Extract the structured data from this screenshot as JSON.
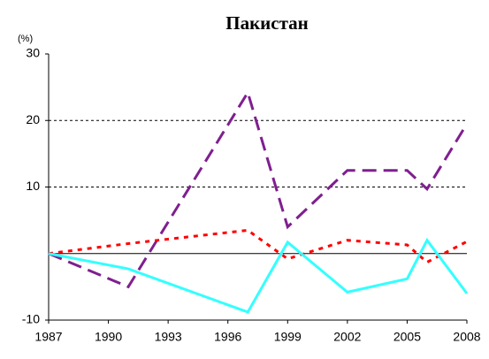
{
  "chart_data": {
    "type": "line",
    "title": "Пакистан",
    "y_label": "(%)",
    "x": [
      1987,
      1991,
      1997,
      1999,
      2002,
      2005,
      2006,
      2008
    ],
    "xlim": [
      1987,
      2008
    ],
    "xticks": [
      1987,
      1990,
      1993,
      1996,
      1999,
      2002,
      2005,
      2008
    ],
    "ylim": [
      -10,
      30
    ],
    "yticks": [
      -10,
      10,
      20,
      30
    ],
    "grid": true,
    "series": [
      {
        "color": "#7f1f8f",
        "style": "dashed",
        "values": [
          0,
          -5,
          24.2,
          4,
          12.5,
          12.5,
          9.7,
          19.5
        ]
      },
      {
        "color": "#ff0000",
        "style": "dotted",
        "values": [
          0,
          1.5,
          3.5,
          -0.8,
          2.0,
          1.3,
          -1.3,
          1.8
        ]
      },
      {
        "color": "#33ffff",
        "style": "solid",
        "values": [
          0,
          -2.3,
          -8.8,
          1.7,
          -5.8,
          -3.8,
          2.0,
          -6.0
        ]
      }
    ]
  }
}
